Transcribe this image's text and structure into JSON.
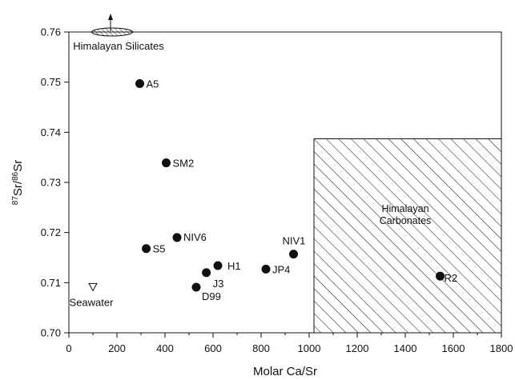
{
  "chart_data": {
    "type": "scatter",
    "title": "",
    "xlabel": "Molar Ca/Sr",
    "ylabel": {
      "superscript_a": "87",
      "part_a": "Sr/",
      "superscript_b": "86",
      "part_b": "Sr"
    },
    "xlim": [
      0,
      1800
    ],
    "ylim": [
      0.7,
      0.76
    ],
    "xticks": [
      "0",
      "200",
      "400",
      "600",
      "800",
      "1000",
      "1200",
      "1400",
      "1600",
      "1800"
    ],
    "yticks": [
      "0.70",
      "0.71",
      "0.72",
      "0.73",
      "0.74",
      "0.75",
      "0.76"
    ],
    "xtick_values": [
      0,
      200,
      400,
      600,
      800,
      1000,
      1200,
      1400,
      1600,
      1800
    ],
    "ytick_values": [
      0.7,
      0.71,
      0.72,
      0.73,
      0.74,
      0.75,
      0.76
    ],
    "grid": false,
    "points": [
      {
        "label": "A5",
        "x": 295,
        "y": 0.7497
      },
      {
        "label": "SM2",
        "x": 405,
        "y": 0.7339
      },
      {
        "label": "NIV6",
        "x": 450,
        "y": 0.719
      },
      {
        "label": "S5",
        "x": 322,
        "y": 0.7168
      },
      {
        "label": "H1",
        "x": 620,
        "y": 0.7134
      },
      {
        "label": "J3",
        "x": 572,
        "y": 0.712
      },
      {
        "label": "D99",
        "x": 530,
        "y": 0.7091
      },
      {
        "label": "JP4",
        "x": 820,
        "y": 0.7127
      },
      {
        "label": "NIV1",
        "x": 935,
        "y": 0.7157
      },
      {
        "label": "R2",
        "x": 1545,
        "y": 0.7113
      }
    ],
    "seawater": {
      "label": "Seawater",
      "x": 100,
      "y": 0.7092
    },
    "regions": [
      {
        "label_line1": "Himalayan",
        "label_line2": "Carbonates",
        "x_range": [
          1020,
          1800
        ],
        "y_range": [
          0.7,
          0.7387
        ],
        "pattern": "hatched"
      },
      {
        "label": "Himalayan Silicates",
        "x_center": 180,
        "y_center": 0.76,
        "x_halfwidth": 85,
        "pattern": "hatched-ellipse",
        "arrow": "up"
      }
    ]
  }
}
